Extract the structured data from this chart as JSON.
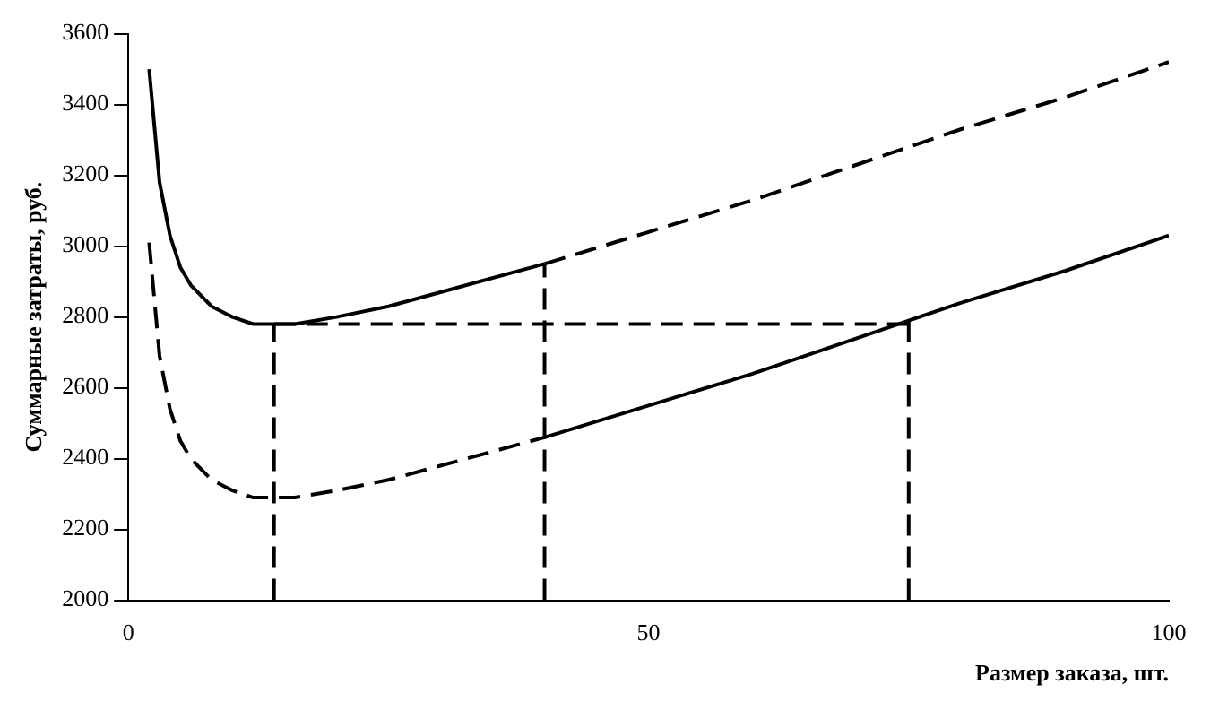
{
  "chart_data": {
    "type": "line",
    "xlabel": "Размер заказа, шт.",
    "ylabel": "Суммарные затраты, руб.",
    "xlim": [
      0,
      100
    ],
    "xticks": [
      0,
      50,
      100
    ],
    "ylim": [
      2000,
      3600
    ],
    "yticks": [
      2000,
      2200,
      2400,
      2600,
      2800,
      3000,
      3200,
      3400,
      3600
    ],
    "grid": false,
    "legend": false,
    "marker": "none",
    "series": [
      {
        "color": "#000000",
        "line_style": "solid",
        "x": [
          2,
          3,
          4,
          5,
          6,
          8,
          10,
          12,
          14,
          16,
          20,
          25,
          30,
          40
        ],
        "values": [
          3500,
          3180,
          3030,
          2940,
          2890,
          2830,
          2800,
          2780,
          2780,
          2780,
          2800,
          2830,
          2870,
          2950
        ]
      },
      {
        "color": "#000000",
        "line_style": "dashed",
        "x": [
          40,
          50,
          60,
          70,
          75,
          80,
          90,
          100
        ],
        "values": [
          2950,
          3040,
          3130,
          3230,
          3280,
          3330,
          3420,
          3520
        ]
      },
      {
        "color": "#000000",
        "line_style": "dashed",
        "x": [
          2,
          3,
          4,
          5,
          6,
          8,
          10,
          12,
          14,
          16,
          20,
          25,
          30,
          40
        ],
        "values": [
          3010,
          2690,
          2540,
          2450,
          2400,
          2340,
          2310,
          2290,
          2290,
          2290,
          2310,
          2340,
          2380,
          2460
        ]
      },
      {
        "color": "#000000",
        "line_style": "solid",
        "x": [
          40,
          50,
          60,
          70,
          75,
          80,
          90,
          100
        ],
        "values": [
          2460,
          2550,
          2640,
          2740,
          2790,
          2840,
          2930,
          3030
        ]
      },
      {
        "color": "#000000",
        "line_style": "dashed",
        "x": [
          14,
          14
        ],
        "values": [
          2000,
          2780
        ]
      },
      {
        "color": "#000000",
        "line_style": "dashed",
        "x": [
          14,
          75
        ],
        "values": [
          2780,
          2780
        ]
      },
      {
        "color": "#000000",
        "line_style": "dashed",
        "x": [
          40,
          40
        ],
        "values": [
          2000,
          2950
        ]
      },
      {
        "color": "#000000",
        "line_style": "dashed",
        "x": [
          75,
          75
        ],
        "values": [
          2000,
          2790
        ]
      }
    ]
  }
}
